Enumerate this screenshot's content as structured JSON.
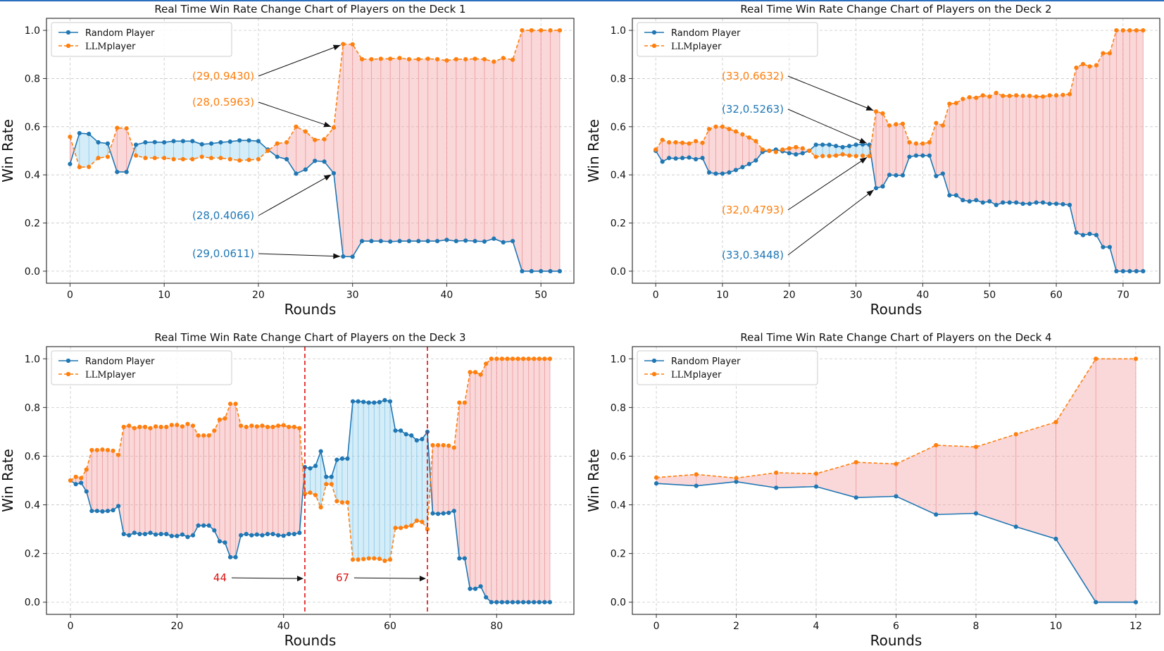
{
  "colors": {
    "random": "#1f77b4",
    "llm": "#ff7f0e",
    "fill_llm_ahead": "#f4a9ab",
    "fill_random_ahead": "#9fd7ef",
    "marker_line": "#dd1111",
    "grid": "#c8c8c8"
  },
  "chart_data": [
    {
      "type": "line",
      "title": "Real Time Win Rate Change Chart of Players on the Deck 1",
      "xlabel": "Rounds",
      "ylabel": "Win Rate",
      "xlim": [
        -2.5,
        53.5
      ],
      "ylim": [
        -0.05,
        1.05
      ],
      "xticks": [
        "0",
        "10",
        "20",
        "30",
        "40",
        "50"
      ],
      "yticks": [
        "0.0",
        "0.2",
        "0.4",
        "0.6",
        "0.8",
        "1.0"
      ],
      "grid": true,
      "legend_position": "top-left",
      "legend": {
        "random": "Random Player",
        "llm_prefix": "LLM",
        "llm_suffix": "player"
      },
      "series": [
        {
          "name": "Random Player",
          "style": "solid",
          "values": [
            0.445,
            0.573,
            0.57,
            0.535,
            0.53,
            0.412,
            0.412,
            0.525,
            0.535,
            0.536,
            0.535,
            0.54,
            0.54,
            0.54,
            0.527,
            0.53,
            0.535,
            0.538,
            0.543,
            0.543,
            0.54,
            0.505,
            0.475,
            0.465,
            0.405,
            0.422,
            0.458,
            0.455,
            0.4066,
            0.0611,
            0.06,
            0.125,
            0.125,
            0.125,
            0.123,
            0.125,
            0.125,
            0.125,
            0.125,
            0.125,
            0.13,
            0.125,
            0.127,
            0.125,
            0.123,
            0.135,
            0.12,
            0.125,
            0.0,
            0.0,
            0.0,
            0.0,
            0.0
          ]
        },
        {
          "name": "LLM player",
          "style": "dashed",
          "values": [
            0.558,
            0.432,
            0.433,
            0.47,
            0.475,
            0.595,
            0.593,
            0.48,
            0.47,
            0.47,
            0.47,
            0.465,
            0.465,
            0.465,
            0.475,
            0.47,
            0.47,
            0.465,
            0.46,
            0.462,
            0.465,
            0.5,
            0.53,
            0.535,
            0.6,
            0.58,
            0.545,
            0.548,
            0.5963,
            0.943,
            0.942,
            0.88,
            0.88,
            0.882,
            0.882,
            0.885,
            0.88,
            0.88,
            0.882,
            0.88,
            0.875,
            0.88,
            0.88,
            0.882,
            0.88,
            0.87,
            0.885,
            0.878,
            1.0,
            1.0,
            1.0,
            1.0,
            1.0
          ]
        }
      ],
      "annotations": [
        {
          "text": "(29,0.9430)",
          "series": "llm",
          "x": 29,
          "y": 0.943
        },
        {
          "text": "(28,0.5963)",
          "series": "llm",
          "x": 28,
          "y": 0.5963
        },
        {
          "text": "(28,0.4066)",
          "series": "random",
          "x": 28,
          "y": 0.4066
        },
        {
          "text": "(29,0.0611)",
          "series": "random",
          "x": 29,
          "y": 0.0611
        }
      ]
    },
    {
      "type": "line",
      "title": "Real Time Win Rate Change Chart of Players on the Deck 2",
      "xlabel": "Rounds",
      "ylabel": "Win Rate",
      "xlim": [
        -3.5,
        75.5
      ],
      "ylim": [
        -0.05,
        1.05
      ],
      "xticks": [
        "0",
        "10",
        "20",
        "30",
        "40",
        "50",
        "60",
        "70"
      ],
      "yticks": [
        "0.0",
        "0.2",
        "0.4",
        "0.6",
        "0.8",
        "1.0"
      ],
      "grid": true,
      "legend_position": "top-left",
      "legend": {
        "random": "Random Player",
        "llm_prefix": "LLM",
        "llm_suffix": "player"
      },
      "series": [
        {
          "name": "Random Player",
          "style": "solid",
          "values": [
            0.5,
            0.455,
            0.47,
            0.468,
            0.47,
            0.472,
            0.465,
            0.47,
            0.41,
            0.405,
            0.405,
            0.41,
            0.42,
            0.432,
            0.445,
            0.46,
            0.495,
            0.5,
            0.505,
            0.498,
            0.49,
            0.485,
            0.49,
            0.5,
            0.525,
            0.525,
            0.525,
            0.52,
            0.515,
            0.52,
            0.525,
            0.5263,
            0.525,
            0.3448,
            0.352,
            0.4,
            0.398,
            0.398,
            0.475,
            0.48,
            0.48,
            0.48,
            0.395,
            0.405,
            0.315,
            0.315,
            0.295,
            0.29,
            0.295,
            0.285,
            0.29,
            0.275,
            0.285,
            0.285,
            0.285,
            0.28,
            0.28,
            0.285,
            0.285,
            0.28,
            0.28,
            0.278,
            0.275,
            0.16,
            0.15,
            0.155,
            0.15,
            0.1,
            0.1,
            0.0,
            0.0,
            0.0,
            0.0,
            0.0
          ]
        },
        {
          "name": "LLM player",
          "style": "dashed",
          "values": [
            0.505,
            0.545,
            0.535,
            0.535,
            0.533,
            0.53,
            0.54,
            0.533,
            0.59,
            0.6,
            0.6,
            0.59,
            0.58,
            0.568,
            0.555,
            0.54,
            0.505,
            0.5,
            0.495,
            0.505,
            0.51,
            0.515,
            0.51,
            0.5,
            0.475,
            0.478,
            0.478,
            0.48,
            0.485,
            0.48,
            0.478,
            0.4793,
            0.478,
            0.6632,
            0.655,
            0.605,
            0.61,
            0.612,
            0.535,
            0.53,
            0.53,
            0.535,
            0.615,
            0.605,
            0.695,
            0.698,
            0.715,
            0.722,
            0.72,
            0.73,
            0.725,
            0.74,
            0.728,
            0.728,
            0.73,
            0.728,
            0.728,
            0.725,
            0.725,
            0.73,
            0.73,
            0.732,
            0.735,
            0.845,
            0.86,
            0.85,
            0.855,
            0.905,
            0.905,
            1.0,
            1.0,
            1.0,
            1.0,
            1.0
          ]
        }
      ],
      "annotations": [
        {
          "text": "(33,0.6632)",
          "series": "llm",
          "x": 33,
          "y": 0.6632
        },
        {
          "text": "(32,0.5263)",
          "series": "random",
          "x": 32,
          "y": 0.5263
        },
        {
          "text": "(32,0.4793)",
          "series": "llm",
          "x": 32,
          "y": 0.4793
        },
        {
          "text": "(33,0.3448)",
          "series": "random",
          "x": 33,
          "y": 0.3448
        }
      ]
    },
    {
      "type": "line",
      "title": "Real Time Win Rate Change Chart of Players on the Deck 3",
      "xlabel": "Rounds",
      "ylabel": "Win Rate",
      "xlim": [
        -4.5,
        94.5
      ],
      "ylim": [
        -0.05,
        1.05
      ],
      "xticks": [
        "0",
        "20",
        "40",
        "60",
        "80"
      ],
      "yticks": [
        "0.0",
        "0.2",
        "0.4",
        "0.6",
        "0.8",
        "1.0"
      ],
      "grid": true,
      "legend_position": "top-left",
      "legend": {
        "random": "Random Player",
        "llm_prefix": "LLM",
        "llm_suffix": "player"
      },
      "series": [
        {
          "name": "Random Player",
          "style": "solid",
          "values": [
            0.5,
            0.485,
            0.49,
            0.455,
            0.375,
            0.375,
            0.373,
            0.375,
            0.378,
            0.395,
            0.28,
            0.275,
            0.285,
            0.28,
            0.28,
            0.285,
            0.278,
            0.28,
            0.28,
            0.272,
            0.272,
            0.278,
            0.268,
            0.275,
            0.315,
            0.315,
            0.315,
            0.295,
            0.25,
            0.245,
            0.185,
            0.185,
            0.275,
            0.28,
            0.275,
            0.278,
            0.275,
            0.28,
            0.28,
            0.275,
            0.273,
            0.28,
            0.28,
            0.285,
            0.555,
            0.55,
            0.56,
            0.62,
            0.515,
            0.515,
            0.585,
            0.59,
            0.59,
            0.825,
            0.825,
            0.823,
            0.82,
            0.82,
            0.822,
            0.83,
            0.825,
            0.705,
            0.705,
            0.69,
            0.685,
            0.665,
            0.67,
            0.7,
            0.365,
            0.363,
            0.365,
            0.367,
            0.375,
            0.18,
            0.18,
            0.055,
            0.055,
            0.065,
            0.02,
            0.0,
            0.0,
            0.0,
            0.0,
            0.0,
            0.0,
            0.0,
            0.0,
            0.0,
            0.0,
            0.0,
            0.0
          ]
        },
        {
          "name": "LLM player",
          "style": "dashed",
          "values": [
            0.5,
            0.515,
            0.51,
            0.545,
            0.625,
            0.625,
            0.627,
            0.625,
            0.622,
            0.605,
            0.72,
            0.725,
            0.715,
            0.72,
            0.72,
            0.715,
            0.722,
            0.72,
            0.72,
            0.728,
            0.728,
            0.722,
            0.732,
            0.725,
            0.685,
            0.685,
            0.685,
            0.705,
            0.75,
            0.755,
            0.815,
            0.815,
            0.725,
            0.72,
            0.725,
            0.722,
            0.725,
            0.72,
            0.72,
            0.725,
            0.727,
            0.72,
            0.72,
            0.715,
            0.445,
            0.45,
            0.44,
            0.39,
            0.485,
            0.485,
            0.415,
            0.41,
            0.41,
            0.175,
            0.175,
            0.177,
            0.18,
            0.18,
            0.178,
            0.17,
            0.175,
            0.305,
            0.305,
            0.31,
            0.315,
            0.335,
            0.33,
            0.3,
            0.645,
            0.645,
            0.645,
            0.643,
            0.635,
            0.82,
            0.82,
            0.945,
            0.945,
            0.935,
            0.98,
            1.0,
            1.0,
            1.0,
            1.0,
            1.0,
            1.0,
            1.0,
            1.0,
            1.0,
            1.0,
            1.0,
            1.0
          ]
        }
      ],
      "vlines": [
        44,
        67
      ],
      "vline_labels": [
        "44",
        "67"
      ]
    },
    {
      "type": "line",
      "title": "Real Time Win Rate Change Chart of Players on the Deck 4",
      "xlabel": "Rounds",
      "ylabel": "Win Rate",
      "xlim": [
        -0.6,
        12.6
      ],
      "ylim": [
        -0.05,
        1.05
      ],
      "xticks": [
        "0",
        "2",
        "4",
        "6",
        "8",
        "10",
        "12"
      ],
      "yticks": [
        "0.0",
        "0.2",
        "0.4",
        "0.6",
        "0.8",
        "1.0"
      ],
      "grid": true,
      "legend_position": "top-left",
      "legend": {
        "random": "Random Player",
        "llm_prefix": "LLM",
        "llm_suffix": "player"
      },
      "series": [
        {
          "name": "Random Player",
          "style": "solid",
          "values": [
            0.488,
            0.478,
            0.495,
            0.47,
            0.475,
            0.43,
            0.435,
            0.36,
            0.365,
            0.31,
            0.26,
            0.0,
            0.0
          ]
        },
        {
          "name": "LLM player",
          "style": "dashed",
          "values": [
            0.512,
            0.525,
            0.51,
            0.532,
            0.528,
            0.575,
            0.568,
            0.645,
            0.638,
            0.69,
            0.74,
            1.0,
            1.0
          ]
        }
      ]
    }
  ]
}
